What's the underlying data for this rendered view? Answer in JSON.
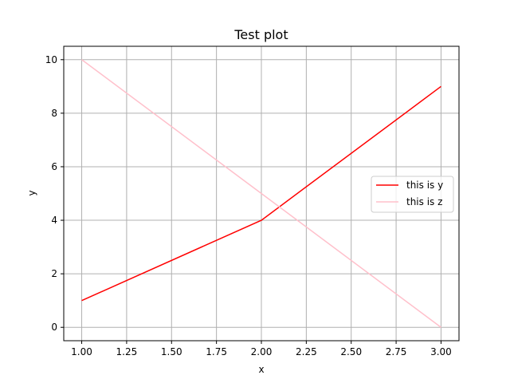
{
  "chart_data": {
    "type": "line",
    "title": "Test plot",
    "xlabel": "x",
    "ylabel": "y",
    "xlim": [
      0.9,
      3.1
    ],
    "ylim": [
      -0.5,
      10.5
    ],
    "xticks": [
      1.0,
      1.25,
      1.5,
      1.75,
      2.0,
      2.25,
      2.5,
      2.75,
      3.0
    ],
    "xtick_labels": [
      "1.00",
      "1.25",
      "1.50",
      "1.75",
      "2.00",
      "2.25",
      "2.50",
      "2.75",
      "3.00"
    ],
    "yticks": [
      0,
      2,
      4,
      6,
      8,
      10
    ],
    "ytick_labels": [
      "0",
      "2",
      "4",
      "6",
      "8",
      "10"
    ],
    "grid": true,
    "legend_position": "center-right",
    "series": [
      {
        "name": "this is y",
        "color": "#ff0000",
        "x": [
          1,
          2,
          3
        ],
        "y": [
          1,
          4,
          9
        ]
      },
      {
        "name": "this is z",
        "color": "#ffc0cb",
        "x": [
          1,
          2,
          3
        ],
        "y": [
          10,
          5,
          0
        ]
      }
    ]
  }
}
